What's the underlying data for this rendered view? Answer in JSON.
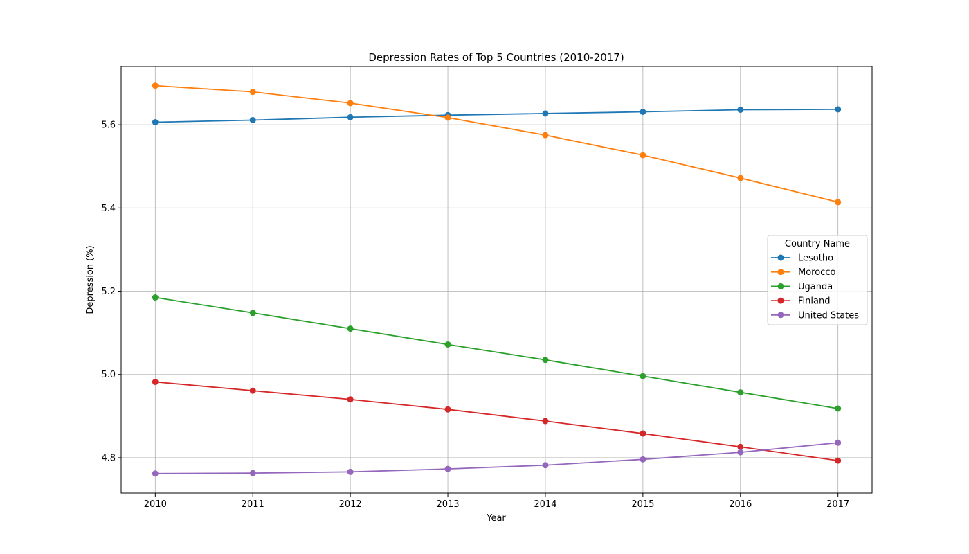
{
  "chart_data": {
    "type": "line",
    "title": "Depression Rates of Top 5 Countries (2010-2017)",
    "xlabel": "Year",
    "ylabel": "Depression (%)",
    "x": [
      2010,
      2011,
      2012,
      2013,
      2014,
      2015,
      2016,
      2017
    ],
    "xlim": [
      2009.65,
      2017.35
    ],
    "ylim": [
      4.715,
      5.74
    ],
    "yticks": [
      4.8,
      5.0,
      5.2,
      5.4,
      5.6
    ],
    "grid": true,
    "legend": {
      "title": "Country Name",
      "placement": "center-right"
    },
    "series": [
      {
        "name": "Lesotho",
        "color": "#1f77b4",
        "values": [
          5.606,
          5.611,
          5.618,
          5.623,
          5.627,
          5.631,
          5.636,
          5.637
        ]
      },
      {
        "name": "Morocco",
        "color": "#ff7f0e",
        "values": [
          5.694,
          5.679,
          5.652,
          5.617,
          5.575,
          5.527,
          5.472,
          5.414
        ]
      },
      {
        "name": "Uganda",
        "color": "#2ca02c",
        "values": [
          5.185,
          5.148,
          5.11,
          5.072,
          5.035,
          4.996,
          4.957,
          4.918
        ]
      },
      {
        "name": "Finland",
        "color": "#d62728",
        "values": [
          4.982,
          4.961,
          4.94,
          4.916,
          4.888,
          4.858,
          4.826,
          4.793
        ]
      },
      {
        "name": "United States",
        "color": "#9467bd",
        "values": [
          4.762,
          4.763,
          4.766,
          4.773,
          4.782,
          4.796,
          4.813,
          4.836
        ]
      }
    ]
  }
}
